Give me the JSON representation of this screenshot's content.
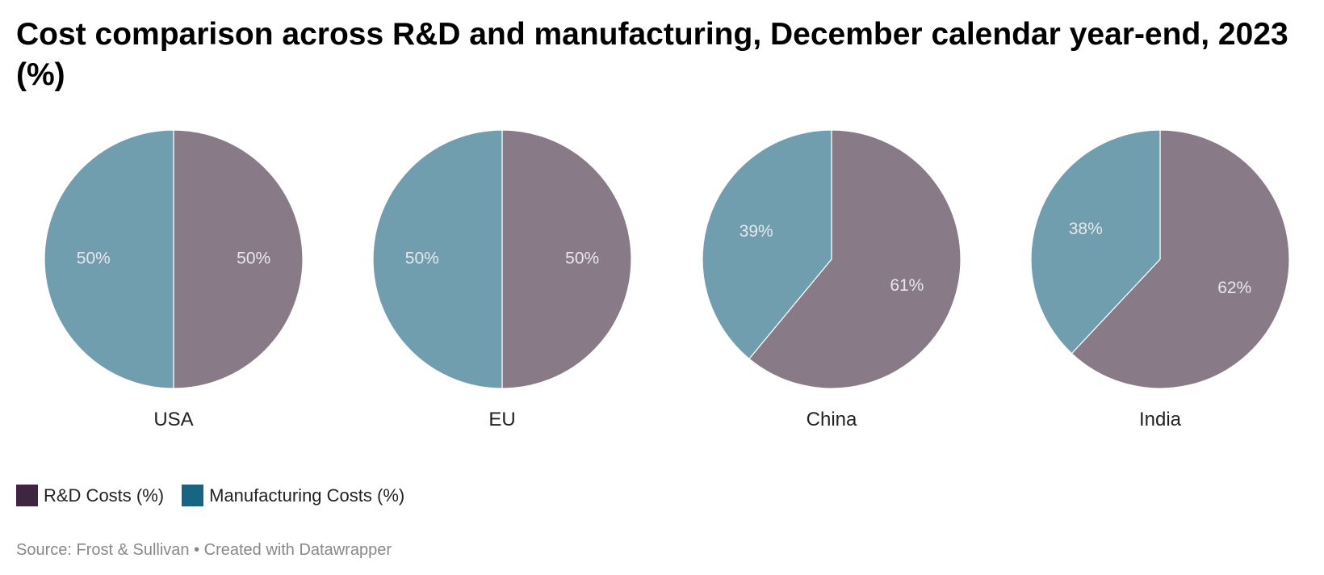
{
  "title": "Cost comparison across R&D and manufacturing, December calendar year-end, 2023 (%)",
  "colors": {
    "rd_slice": "#897a88",
    "mfg_slice": "#719eae",
    "rd_legend": "#3e2640",
    "mfg_legend": "#186582"
  },
  "legend": {
    "rd_label": "R&D Costs (%)",
    "mfg_label": "Manufacturing Costs (%)"
  },
  "source": "Source: Frost & Sullivan • Created with Datawrapper",
  "chart_data": {
    "type": "pie",
    "title": "Cost comparison across R&D and manufacturing, December calendar year-end, 2023 (%)",
    "categories": [
      "USA",
      "EU",
      "China",
      "India"
    ],
    "series": [
      {
        "name": "R&D Costs (%)",
        "values": [
          50,
          50,
          61,
          62
        ]
      },
      {
        "name": "Manufacturing Costs (%)",
        "values": [
          50,
          50,
          39,
          38
        ]
      }
    ],
    "value_labels": {
      "rd": [
        "50%",
        "50%",
        "61%",
        "62%"
      ],
      "mfg": [
        "50%",
        "50%",
        "39%",
        "38%"
      ]
    },
    "legend_position": "bottom-left"
  }
}
